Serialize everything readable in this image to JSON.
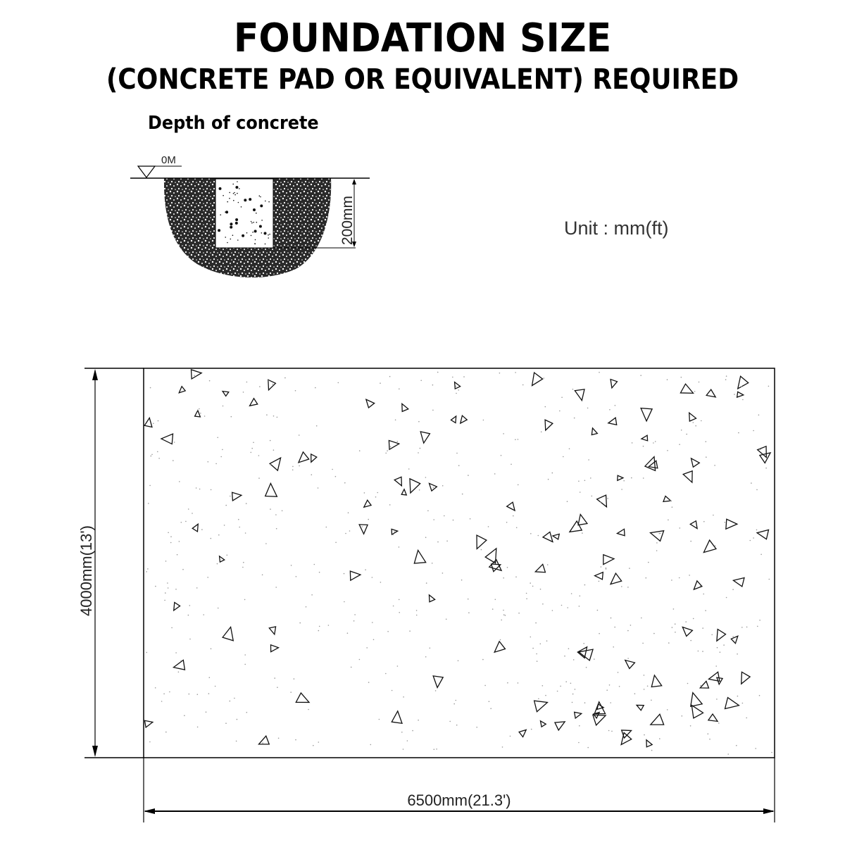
{
  "title": "FOUNDATION SIZE",
  "subtitle": "(CONCRETE PAD OR EQUIVALENT) REQUIRED",
  "section_heading": "Depth of concrete",
  "section": {
    "ground_level_label": "0M",
    "depth_label": "200mm"
  },
  "unit_label": "Unit : mm(ft)",
  "plan": {
    "height_label": "4000mm(13')",
    "width_label": "6500mm(21.3')"
  }
}
